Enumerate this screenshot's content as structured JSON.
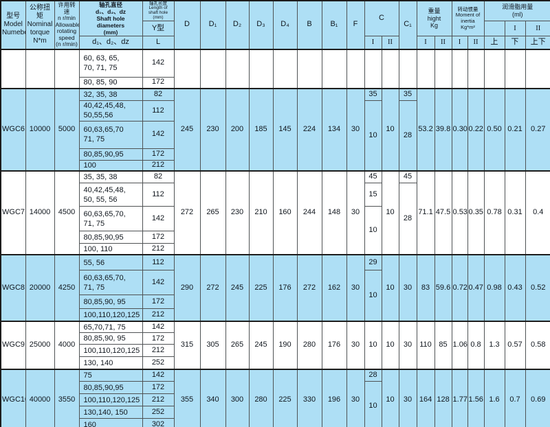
{
  "colors": {
    "cell_blue": "#aedff5",
    "header_blue": "#aedff5",
    "row_white": "#ffffff",
    "grid_line": "#4f5254",
    "text": "#10161d"
  },
  "header": {
    "model": "型号\nModel\nNumeber",
    "torque": "公称扭矩\nNominal\ntorque\nN*m",
    "speed": "许用转速\nn r/min\nAllowable\nrotating\nspeed\n(n r/min)",
    "shaft_diameters": "轴孔直径\nd₁、d₂、dz\nShaft hole\ndiameters\n(mm)",
    "shaft_sub": "d₁、d₂、dz",
    "shaft_len": "轴孔长度\nLength of\nshaft hole\n(mm)",
    "shaft_len_type": "Y型",
    "shaft_len_sub": "L",
    "d": "D",
    "d1": "D₁",
    "d2": "D₂",
    "d3": "D₃",
    "d4": "D₄",
    "b": "B",
    "b1": "B₁",
    "f": "F",
    "c": "C",
    "c1": "C₁",
    "weight": "重量\nhight\nKg",
    "moment": "转动惯量\nMoment of\ninertia\nKg*m²",
    "grease": "润滑脂用量\n(ml)",
    "roman_i": "I",
    "roman_ii": "II",
    "up": "上",
    "down": "下",
    "updown": "上下"
  },
  "sections": [
    {
      "model": "",
      "torque": "",
      "speed": "",
      "bg": "white",
      "rows": [
        {
          "holes": "60, 63, 65,\n70, 71, 75",
          "len": "142"
        },
        {
          "holes": "80, 85, 90",
          "len": "172"
        }
      ],
      "dims": [
        "",
        "",
        "",
        "",
        "",
        "",
        "",
        ""
      ],
      "c_i": [
        {
          "v": "",
          "span": 2
        }
      ],
      "c_ii": "",
      "c1": [
        {
          "v": "",
          "span": 2
        }
      ],
      "weight_i": "",
      "weight_ii": "",
      "moment_i": "",
      "moment_ii": "",
      "grease_up": "",
      "grease_down": "",
      "grease_updown": ""
    },
    {
      "model": "WGC6",
      "torque": "10000",
      "speed": "5000",
      "bg": "blue",
      "rows": [
        {
          "holes": "32, 35, 38",
          "len": "82"
        },
        {
          "holes": "40,42,45,48,\n50,55,56",
          "len": "112"
        },
        {
          "holes": "60,63,65,70\n71, 75",
          "len": "142"
        },
        {
          "holes": "80,85,90,95",
          "len": "172"
        },
        {
          "holes": "100",
          "len": "212"
        }
      ],
      "dims": [
        "245",
        "230",
        "200",
        "185",
        "145",
        "224",
        "134",
        "30"
      ],
      "c_i": [
        {
          "v": "35",
          "span": 1
        },
        {
          "v": "10",
          "span": 4
        }
      ],
      "c_ii": "10",
      "c1": [
        {
          "v": "35",
          "span": 1
        },
        {
          "v": "28",
          "span": 4
        }
      ],
      "weight_i": "53.2",
      "weight_ii": "39.8",
      "moment_i": "0.30",
      "moment_ii": "0.22",
      "grease_up": "0.50",
      "grease_down": "0.21",
      "grease_updown": "0.27"
    },
    {
      "model": "WGC7",
      "torque": "14000",
      "speed": "4500",
      "bg": "white",
      "rows": [
        {
          "holes": "35, 35, 38",
          "len": "82"
        },
        {
          "holes": "40,42,45,48,\n50, 55, 56",
          "len": "112"
        },
        {
          "holes": "60,63,65,70,\n71, 75",
          "len": "142"
        },
        {
          "holes": "80,85,90,95",
          "len": "172"
        },
        {
          "holes": "100, 110",
          "len": "212"
        }
      ],
      "dims": [
        "272",
        "265",
        "230",
        "210",
        "160",
        "244",
        "148",
        "30"
      ],
      "c_i": [
        {
          "v": "45",
          "span": 1
        },
        {
          "v": "15",
          "span": 1
        },
        {
          "v": "10",
          "span": 3
        }
      ],
      "c_ii": "10",
      "c1": [
        {
          "v": "45",
          "span": 1
        },
        {
          "v": "28",
          "span": 4
        }
      ],
      "weight_i": "71.1",
      "weight_ii": "47.5",
      "moment_i": "0.53",
      "moment_ii": "0.35",
      "grease_up": "0.78",
      "grease_down": "0.31",
      "grease_updown": "0.4"
    },
    {
      "model": "WGC8",
      "torque": "20000",
      "speed": "4250",
      "bg": "blue",
      "rows": [
        {
          "holes": "55, 56",
          "len": "112"
        },
        {
          "holes": "60,63,65,70,\n71, 75",
          "len": "142"
        },
        {
          "holes": "80,85,90, 95",
          "len": "172"
        },
        {
          "holes": "100,110,120,125",
          "len": "212"
        }
      ],
      "dims": [
        "290",
        "272",
        "245",
        "225",
        "176",
        "272",
        "162",
        "30"
      ],
      "c_i": [
        {
          "v": "29",
          "span": 1
        },
        {
          "v": "10",
          "span": 3
        }
      ],
      "c_ii": "10",
      "c1": [
        {
          "v": "30",
          "span": 4
        }
      ],
      "weight_i": "83",
      "weight_ii": "59.6",
      "moment_i": "0.72",
      "moment_ii": "0.47",
      "grease_up": "0.98",
      "grease_down": "0.43",
      "grease_updown": "0.52"
    },
    {
      "model": "WGC9",
      "torque": "25000",
      "speed": "4000",
      "bg": "white",
      "rows": [
        {
          "holes": "65,70,71, 75",
          "len": "142"
        },
        {
          "holes": "80,85,90, 95",
          "len": "172"
        },
        {
          "holes": "100,110,120,125",
          "len": "212"
        },
        {
          "holes": "130, 140",
          "len": "252"
        }
      ],
      "dims": [
        "315",
        "305",
        "265",
        "245",
        "190",
        "280",
        "176",
        "30"
      ],
      "c_i": [
        {
          "v": "10",
          "span": 4
        }
      ],
      "c_ii": "10",
      "c1": [
        {
          "v": "30",
          "span": 4
        }
      ],
      "weight_i": "110",
      "weight_ii": "85",
      "moment_i": "1.06",
      "moment_ii": "0.8",
      "grease_up": "1.3",
      "grease_down": "0.57",
      "grease_updown": "0.58"
    },
    {
      "model": "WGC10",
      "torque": "40000",
      "speed": "3550",
      "bg": "blue",
      "rows": [
        {
          "holes": "75",
          "len": "142"
        },
        {
          "holes": "80,85,90,95",
          "len": "172"
        },
        {
          "holes": "100,110,120,125",
          "len": "212"
        },
        {
          "holes": "130,140, 150",
          "len": "252"
        },
        {
          "holes": "160",
          "len": "302"
        }
      ],
      "dims": [
        "355",
        "340",
        "300",
        "280",
        "225",
        "330",
        "196",
        "30"
      ],
      "c_i": [
        {
          "v": "28",
          "span": 1
        },
        {
          "v": "10",
          "span": 4
        }
      ],
      "c_ii": "10",
      "c1": [
        {
          "v": "30",
          "span": 5
        }
      ],
      "weight_i": "164",
      "weight_ii": "128",
      "moment_i": "1.77",
      "moment_ii": "1.56",
      "grease_up": "1.6",
      "grease_down": "0.7",
      "grease_updown": "0.69"
    }
  ]
}
